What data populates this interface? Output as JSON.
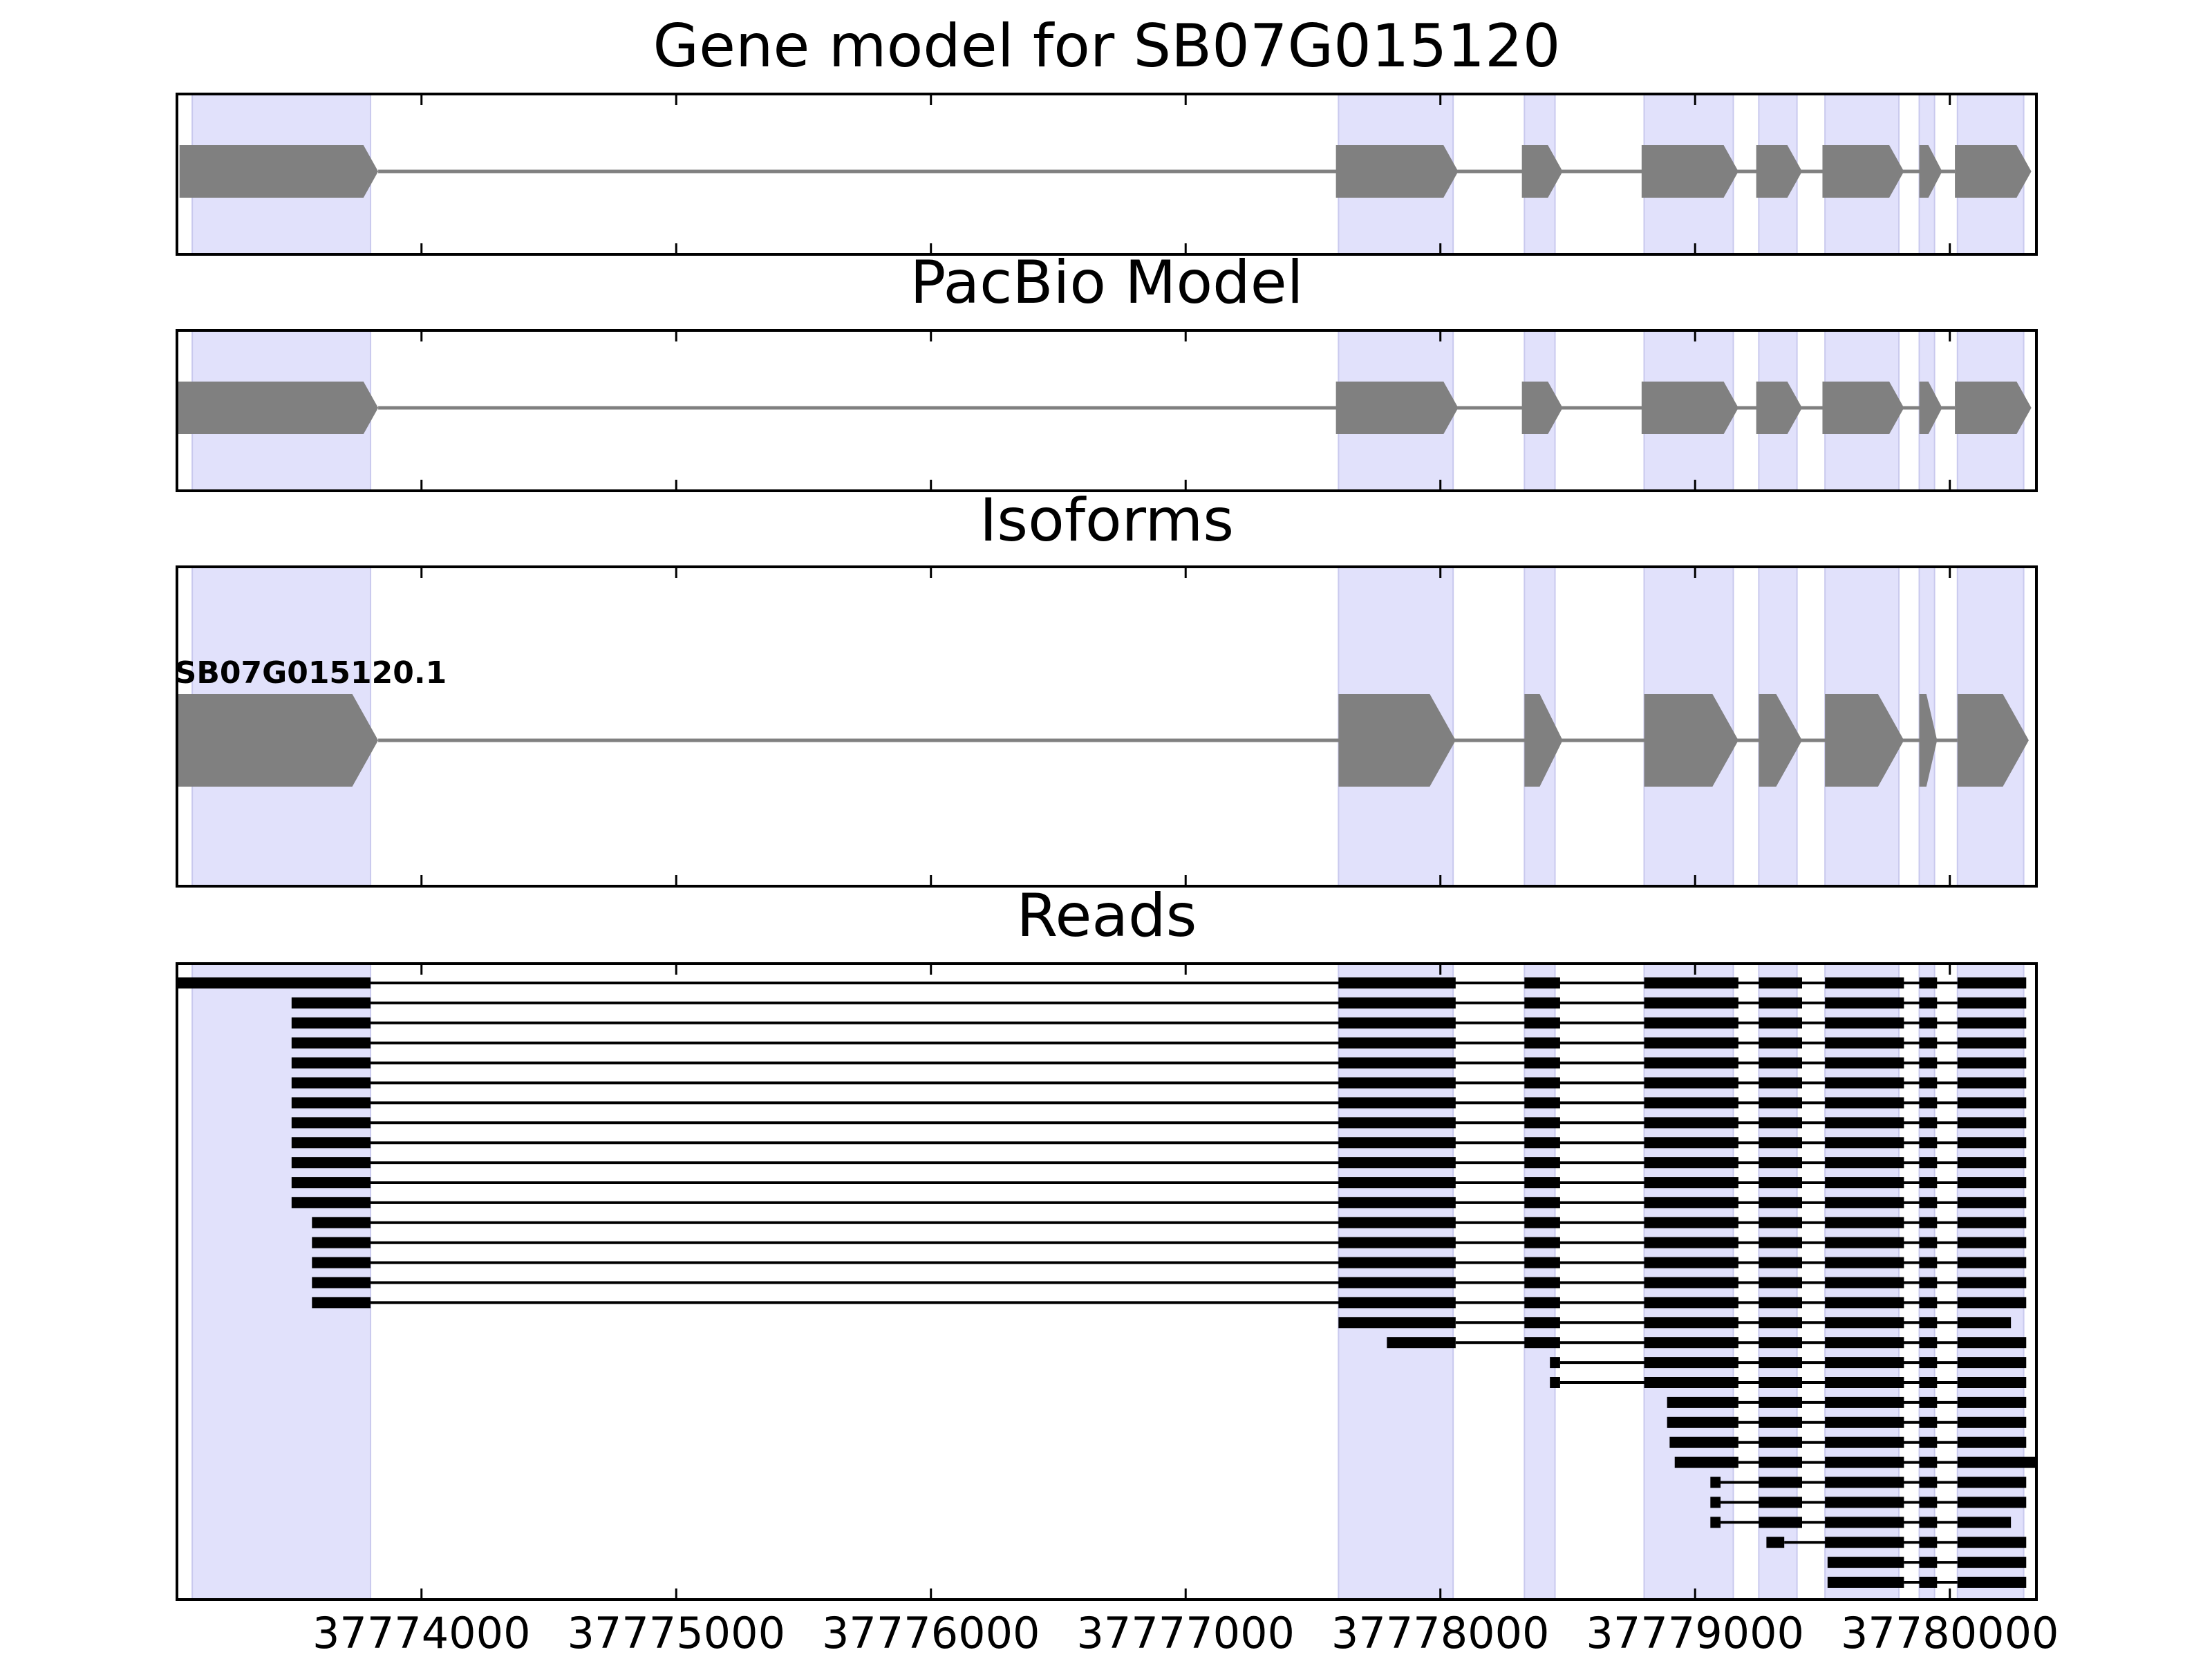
{
  "colors": {
    "exon_band": "#e1e1fb",
    "exon_band_edge": "#c9c9ee",
    "gene_feature": "#808080",
    "read": "#000000",
    "frame": "#000000"
  },
  "chart_data": {
    "type": "gene-track",
    "xlim": [
      37773040,
      37780340
    ],
    "ticks": [
      37774000,
      37775000,
      37776000,
      37777000,
      37778000,
      37779000,
      37780000
    ],
    "tick_labels": [
      "37774000",
      "37775000",
      "37776000",
      "37777000",
      "37778000",
      "37779000",
      "37780000"
    ],
    "exon_bands": [
      [
        37773100,
        37773800
      ],
      [
        37777600,
        37778050
      ],
      [
        37778330,
        37778450
      ],
      [
        37778800,
        37779150
      ],
      [
        37779250,
        37779400
      ],
      [
        37779510,
        37779800
      ],
      [
        37779880,
        37779940
      ],
      [
        37780030,
        37780290
      ]
    ],
    "panels": [
      {
        "title": "Gene model for SB07G015120",
        "kind": "model",
        "features": [
          [
            37773050,
            37773830
          ],
          [
            37777590,
            37778070
          ],
          [
            37778320,
            37778480
          ],
          [
            37778790,
            37779170
          ],
          [
            37779240,
            37779420
          ],
          [
            37779500,
            37779820
          ],
          [
            37779880,
            37779970
          ],
          [
            37780020,
            37780320
          ]
        ]
      },
      {
        "title": "PacBio Model",
        "kind": "model",
        "features": [
          [
            37773020,
            37773830
          ],
          [
            37777590,
            37778070
          ],
          [
            37778320,
            37778480
          ],
          [
            37778790,
            37779170
          ],
          [
            37779240,
            37779420
          ],
          [
            37779500,
            37779820
          ],
          [
            37779880,
            37779970
          ],
          [
            37780020,
            37780320
          ]
        ]
      },
      {
        "title": "Isoforms",
        "kind": "isoform",
        "isoform_label": "SB07G015120.1",
        "features": [
          [
            37773020,
            37773830
          ],
          [
            37777600,
            37778060
          ],
          [
            37778330,
            37778480
          ],
          [
            37778800,
            37779170
          ],
          [
            37779250,
            37779420
          ],
          [
            37779510,
            37779820
          ],
          [
            37779880,
            37779950
          ],
          [
            37780030,
            37780310
          ]
        ]
      },
      {
        "title": "Reads",
        "kind": "reads",
        "reads": [
          [
            [
              37773020,
              37773800
            ],
            [
              37777600,
              37778060
            ],
            [
              37778330,
              37778470
            ],
            [
              37778800,
              37779170
            ],
            [
              37779250,
              37779420
            ],
            [
              37779510,
              37779820
            ],
            [
              37779880,
              37779950
            ],
            [
              37780030,
              37780300
            ]
          ],
          [
            [
              37773490,
              37773800
            ],
            [
              37777600,
              37778060
            ],
            [
              37778330,
              37778470
            ],
            [
              37778800,
              37779170
            ],
            [
              37779250,
              37779420
            ],
            [
              37779510,
              37779820
            ],
            [
              37779880,
              37779950
            ],
            [
              37780030,
              37780300
            ]
          ],
          [
            [
              37773490,
              37773800
            ],
            [
              37777600,
              37778060
            ],
            [
              37778330,
              37778470
            ],
            [
              37778800,
              37779170
            ],
            [
              37779250,
              37779420
            ],
            [
              37779510,
              37779820
            ],
            [
              37779880,
              37779950
            ],
            [
              37780030,
              37780300
            ]
          ],
          [
            [
              37773490,
              37773800
            ],
            [
              37777600,
              37778060
            ],
            [
              37778330,
              37778470
            ],
            [
              37778800,
              37779170
            ],
            [
              37779250,
              37779420
            ],
            [
              37779510,
              37779820
            ],
            [
              37779880,
              37779950
            ],
            [
              37780030,
              37780300
            ]
          ],
          [
            [
              37773490,
              37773800
            ],
            [
              37777600,
              37778060
            ],
            [
              37778330,
              37778470
            ],
            [
              37778800,
              37779170
            ],
            [
              37779250,
              37779420
            ],
            [
              37779510,
              37779820
            ],
            [
              37779880,
              37779950
            ],
            [
              37780030,
              37780300
            ]
          ],
          [
            [
              37773490,
              37773800
            ],
            [
              37777600,
              37778060
            ],
            [
              37778330,
              37778470
            ],
            [
              37778800,
              37779170
            ],
            [
              37779250,
              37779420
            ],
            [
              37779510,
              37779820
            ],
            [
              37779880,
              37779950
            ],
            [
              37780030,
              37780300
            ]
          ],
          [
            [
              37773490,
              37773800
            ],
            [
              37777600,
              37778060
            ],
            [
              37778330,
              37778470
            ],
            [
              37778800,
              37779170
            ],
            [
              37779250,
              37779420
            ],
            [
              37779510,
              37779820
            ],
            [
              37779880,
              37779950
            ],
            [
              37780030,
              37780300
            ]
          ],
          [
            [
              37773490,
              37773800
            ],
            [
              37777600,
              37778060
            ],
            [
              37778330,
              37778470
            ],
            [
              37778800,
              37779170
            ],
            [
              37779250,
              37779420
            ],
            [
              37779510,
              37779820
            ],
            [
              37779880,
              37779950
            ],
            [
              37780030,
              37780300
            ]
          ],
          [
            [
              37773490,
              37773800
            ],
            [
              37777600,
              37778060
            ],
            [
              37778330,
              37778470
            ],
            [
              37778800,
              37779170
            ],
            [
              37779250,
              37779420
            ],
            [
              37779510,
              37779820
            ],
            [
              37779880,
              37779950
            ],
            [
              37780030,
              37780300
            ]
          ],
          [
            [
              37773490,
              37773800
            ],
            [
              37777600,
              37778060
            ],
            [
              37778330,
              37778470
            ],
            [
              37778800,
              37779170
            ],
            [
              37779250,
              37779420
            ],
            [
              37779510,
              37779820
            ],
            [
              37779880,
              37779950
            ],
            [
              37780030,
              37780300
            ]
          ],
          [
            [
              37773490,
              37773800
            ],
            [
              37777600,
              37778060
            ],
            [
              37778330,
              37778470
            ],
            [
              37778800,
              37779170
            ],
            [
              37779250,
              37779420
            ],
            [
              37779510,
              37779820
            ],
            [
              37779880,
              37779950
            ],
            [
              37780030,
              37780300
            ]
          ],
          [
            [
              37773490,
              37773800
            ],
            [
              37777600,
              37778060
            ],
            [
              37778330,
              37778470
            ],
            [
              37778800,
              37779170
            ],
            [
              37779250,
              37779420
            ],
            [
              37779510,
              37779820
            ],
            [
              37779880,
              37779950
            ],
            [
              37780030,
              37780300
            ]
          ],
          [
            [
              37773570,
              37773800
            ],
            [
              37777600,
              37778060
            ],
            [
              37778330,
              37778470
            ],
            [
              37778800,
              37779170
            ],
            [
              37779250,
              37779420
            ],
            [
              37779510,
              37779820
            ],
            [
              37779880,
              37779950
            ],
            [
              37780030,
              37780300
            ]
          ],
          [
            [
              37773570,
              37773800
            ],
            [
              37777600,
              37778060
            ],
            [
              37778330,
              37778470
            ],
            [
              37778800,
              37779170
            ],
            [
              37779250,
              37779420
            ],
            [
              37779510,
              37779820
            ],
            [
              37779880,
              37779950
            ],
            [
              37780030,
              37780300
            ]
          ],
          [
            [
              37773570,
              37773800
            ],
            [
              37777600,
              37778060
            ],
            [
              37778330,
              37778470
            ],
            [
              37778800,
              37779170
            ],
            [
              37779250,
              37779420
            ],
            [
              37779510,
              37779820
            ],
            [
              37779880,
              37779950
            ],
            [
              37780030,
              37780300
            ]
          ],
          [
            [
              37773570,
              37773800
            ],
            [
              37777600,
              37778060
            ],
            [
              37778330,
              37778470
            ],
            [
              37778800,
              37779170
            ],
            [
              37779250,
              37779420
            ],
            [
              37779510,
              37779820
            ],
            [
              37779880,
              37779950
            ],
            [
              37780030,
              37780300
            ]
          ],
          [
            [
              37773570,
              37773800
            ],
            [
              37777600,
              37778060
            ],
            [
              37778330,
              37778470
            ],
            [
              37778800,
              37779170
            ],
            [
              37779250,
              37779420
            ],
            [
              37779510,
              37779820
            ],
            [
              37779880,
              37779950
            ],
            [
              37780030,
              37780300
            ]
          ],
          [
            [
              37777600,
              37778060
            ],
            [
              37778330,
              37778470
            ],
            [
              37778800,
              37779170
            ],
            [
              37779250,
              37779420
            ],
            [
              37779510,
              37779820
            ],
            [
              37779880,
              37779950
            ],
            [
              37780030,
              37780240
            ]
          ],
          [
            [
              37777790,
              37778060
            ],
            [
              37778330,
              37778470
            ],
            [
              37778800,
              37779170
            ],
            [
              37779250,
              37779420
            ],
            [
              37779510,
              37779820
            ],
            [
              37779880,
              37779950
            ],
            [
              37780030,
              37780300
            ]
          ],
          [
            [
              37778430,
              37778470
            ],
            [
              37778800,
              37779170
            ],
            [
              37779250,
              37779420
            ],
            [
              37779510,
              37779820
            ],
            [
              37779880,
              37779950
            ],
            [
              37780030,
              37780300
            ]
          ],
          [
            [
              37778430,
              37778470
            ],
            [
              37778800,
              37779170
            ],
            [
              37779250,
              37779420
            ],
            [
              37779510,
              37779820
            ],
            [
              37779880,
              37779950
            ],
            [
              37780030,
              37780300
            ]
          ],
          [
            [
              37778890,
              37779170
            ],
            [
              37779250,
              37779420
            ],
            [
              37779510,
              37779820
            ],
            [
              37779880,
              37779950
            ],
            [
              37780030,
              37780300
            ]
          ],
          [
            [
              37778890,
              37779170
            ],
            [
              37779250,
              37779420
            ],
            [
              37779510,
              37779820
            ],
            [
              37779880,
              37779950
            ],
            [
              37780030,
              37780300
            ]
          ],
          [
            [
              37778900,
              37779170
            ],
            [
              37779250,
              37779420
            ],
            [
              37779510,
              37779820
            ],
            [
              37779880,
              37779950
            ],
            [
              37780030,
              37780300
            ]
          ],
          [
            [
              37778920,
              37779170
            ],
            [
              37779250,
              37779420
            ],
            [
              37779510,
              37779820
            ],
            [
              37779880,
              37779950
            ],
            [
              37780030,
              37780340
            ]
          ],
          [
            [
              37779060,
              37779100
            ],
            [
              37779250,
              37779420
            ],
            [
              37779510,
              37779820
            ],
            [
              37779880,
              37779950
            ],
            [
              37780030,
              37780300
            ]
          ],
          [
            [
              37779060,
              37779100
            ],
            [
              37779250,
              37779420
            ],
            [
              37779510,
              37779820
            ],
            [
              37779880,
              37779950
            ],
            [
              37780030,
              37780300
            ]
          ],
          [
            [
              37779060,
              37779100
            ],
            [
              37779250,
              37779420
            ],
            [
              37779510,
              37779820
            ],
            [
              37779880,
              37779950
            ],
            [
              37780030,
              37780240
            ]
          ],
          [
            [
              37779280,
              37779350
            ],
            [
              37779510,
              37779820
            ],
            [
              37779880,
              37779950
            ],
            [
              37780030,
              37780300
            ]
          ],
          [
            [
              37779520,
              37779820
            ],
            [
              37779880,
              37779950
            ],
            [
              37780030,
              37780300
            ]
          ],
          [
            [
              37779520,
              37779820
            ],
            [
              37779880,
              37779950
            ],
            [
              37780030,
              37780300
            ]
          ]
        ]
      }
    ]
  }
}
